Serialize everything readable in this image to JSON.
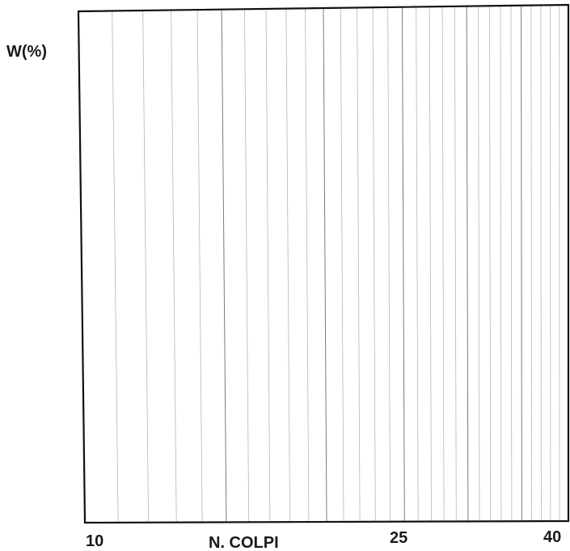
{
  "chart_data": {
    "type": "line",
    "title": "",
    "xlabel": "N. COLPI",
    "ylabel": "W(%)",
    "x_scale": "log",
    "xlim": [
      10,
      40
    ],
    "x_tick_labels": [
      "10",
      "25",
      "40"
    ],
    "x_gridlines": [
      15,
      20,
      25,
      30,
      35,
      40
    ],
    "x_minor_gridlines": [
      11,
      12,
      13,
      14,
      16,
      17,
      18,
      19,
      21,
      22,
      23,
      24,
      26,
      27,
      28,
      29,
      31,
      32,
      33,
      34,
      36,
      37,
      38,
      39
    ],
    "grid": "vertical",
    "series": [],
    "colors": {
      "frame": "#111111",
      "grid_major": "#7a7a7a",
      "grid_minor": "#b5b5b5",
      "text": "#1a1a1a"
    }
  }
}
